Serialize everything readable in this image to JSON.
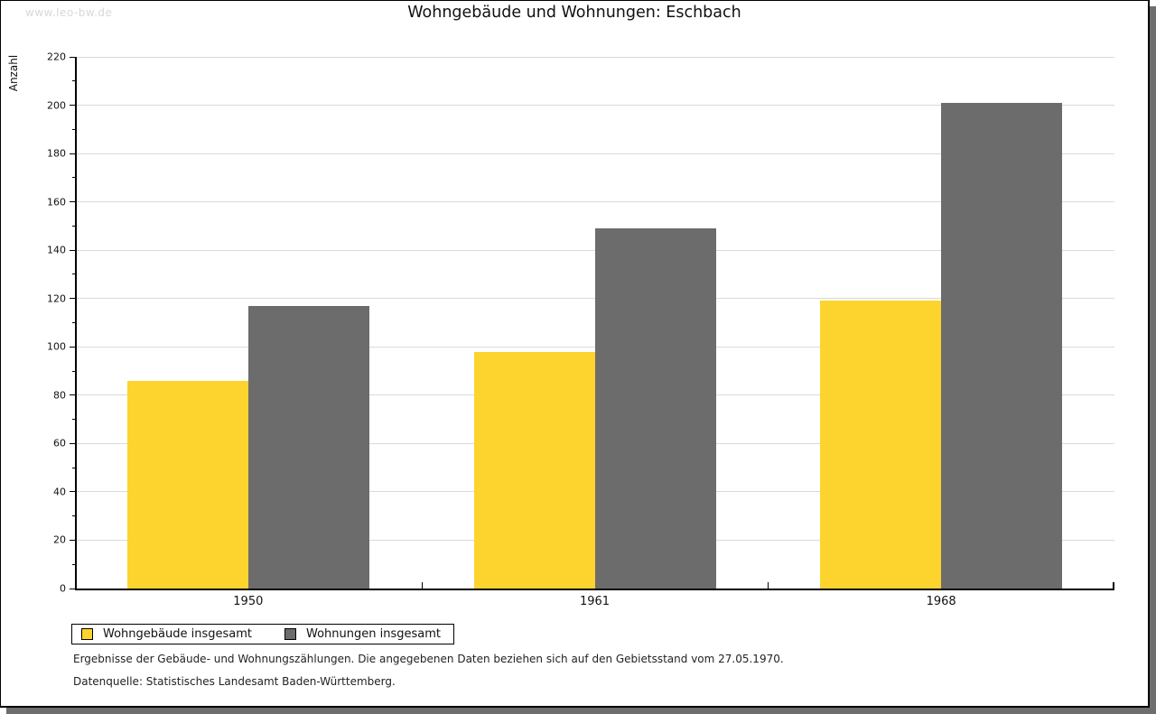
{
  "watermark": "www.leo-bw.de",
  "chart_data": {
    "type": "bar",
    "title": "Wohngebäude und Wohnungen: Eschbach",
    "xlabel": "",
    "ylabel": "Anzahl",
    "categories": [
      "1950",
      "1961",
      "1968"
    ],
    "series": [
      {
        "name": "Wohngebäude insgesamt",
        "color": "#FCD42D",
        "values": [
          86,
          98,
          119
        ]
      },
      {
        "name": "Wohnungen insgesamt",
        "color": "#6C6C6C",
        "values": [
          117,
          149,
          201
        ]
      }
    ],
    "ylim": [
      0,
      220
    ],
    "ytick_step": 20,
    "ytick_minor_step": 10,
    "yticks": [
      0,
      20,
      40,
      60,
      80,
      100,
      120,
      140,
      160,
      180,
      200,
      220
    ],
    "grid": true,
    "legend_position": "bottom-left"
  },
  "footnotes": [
    "Ergebnisse der Gebäude- und Wohnungszählungen. Die angegebenen Daten beziehen sich auf den Gebietsstand vom 27.05.1970.",
    "Datenquelle: Statistisches Landesamt Baden-Württemberg."
  ],
  "colors": {
    "bar_yellow": "#FCD42D",
    "bar_gray": "#6C6C6C",
    "gridline": "#DADADA",
    "shadow": "#6E6E6E",
    "watermark": "#D8D8D8"
  }
}
